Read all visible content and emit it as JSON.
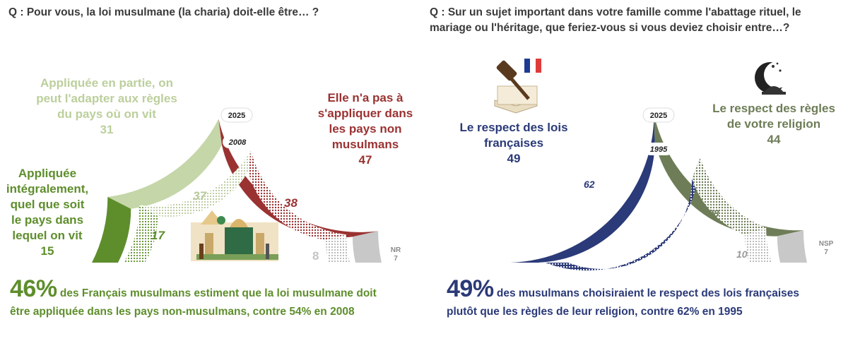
{
  "left": {
    "question": "Q : Pour vous, la loi musulmane (la charia) doit-elle être… ?",
    "year_outer": "2025",
    "year_inner": "2008",
    "labels": {
      "appliquee_integralement": {
        "text": "Appliquée intégralement, quel que soit le pays dans lequel on vit",
        "value": "15"
      },
      "appliquee_en_partie": {
        "text": "Appliquée en partie, on peut l'adapter aux règles du pays où on vit",
        "value": "31"
      },
      "pas_a_appliquer": {
        "text": "Elle n'a pas à s'appliquer dans les pays non musulmans",
        "value": "47"
      },
      "nr": {
        "text": "NR",
        "value": "7"
      }
    },
    "inner_values": {
      "appliquee_integralement": "17",
      "appliquee_en_partie": "37",
      "pas_a_appliquer": "38",
      "nr": "8"
    },
    "conclusion": {
      "big": "46%",
      "rest_line1": " des Français musulmans estiment que la loi musulmane doit",
      "line2": "être appliquée dans les pays non-musulmans, contre 54% en 2008"
    }
  },
  "right": {
    "question_line1": "Q : Sur un sujet important dans votre famille comme l'abattage rituel, le",
    "question_line2": "mariage ou l'héritage, que feriez-vous si vous deviez choisir entre…?",
    "year_outer": "2025",
    "year_inner": "1995",
    "labels": {
      "lois_francaises": {
        "text": "Le respect des lois françaises",
        "value": "49"
      },
      "regles_religion": {
        "text": "Le respect des règles de votre religion",
        "value": "44"
      },
      "nsp": {
        "text": "NSP",
        "value": "7"
      }
    },
    "inner_values": {
      "lois_francaises": "62",
      "regles_religion": "28",
      "nsp": "10"
    },
    "conclusion": {
      "big": "49%",
      "rest_line1": " des musulmans choisiraient le respect des lois françaises",
      "line2": "plutôt que les règles de leur religion, contre 62% en 1995"
    }
  },
  "colors": {
    "dark_green": "#5e8e2c",
    "light_green": "#c5d6a8",
    "dark_red": "#9b3232",
    "grey": "#c8c8c8",
    "navy": "#2b3a78",
    "olive": "#6e7d57",
    "question_text": "#3a3a3a"
  },
  "chart_data": [
    {
      "type": "donut-semicircle",
      "title": "Q : Pour vous, la loi musulmane (la charia) doit-elle être… ?",
      "categories": [
        "Appliquée intégralement, quel que soit le pays dans lequel on vit",
        "Appliquée en partie, on peut l'adapter aux règles du pays où on vit",
        "Elle n'a pas à s'appliquer dans les pays non musulmans",
        "NR"
      ],
      "series": [
        {
          "name": "2025",
          "values": [
            15,
            31,
            47,
            7
          ]
        },
        {
          "name": "2008",
          "values": [
            17,
            37,
            38,
            8
          ]
        }
      ]
    },
    {
      "type": "donut-semicircle",
      "title": "Q : Sur un sujet important dans votre famille comme l'abattage rituel, le mariage ou l'héritage, que feriez-vous si vous deviez choisir entre…?",
      "categories": [
        "Le respect des lois françaises",
        "Le respect des règles de votre religion",
        "NSP"
      ],
      "series": [
        {
          "name": "2025",
          "values": [
            49,
            44,
            7
          ]
        },
        {
          "name": "1995",
          "values": [
            62,
            28,
            10
          ]
        }
      ]
    }
  ]
}
